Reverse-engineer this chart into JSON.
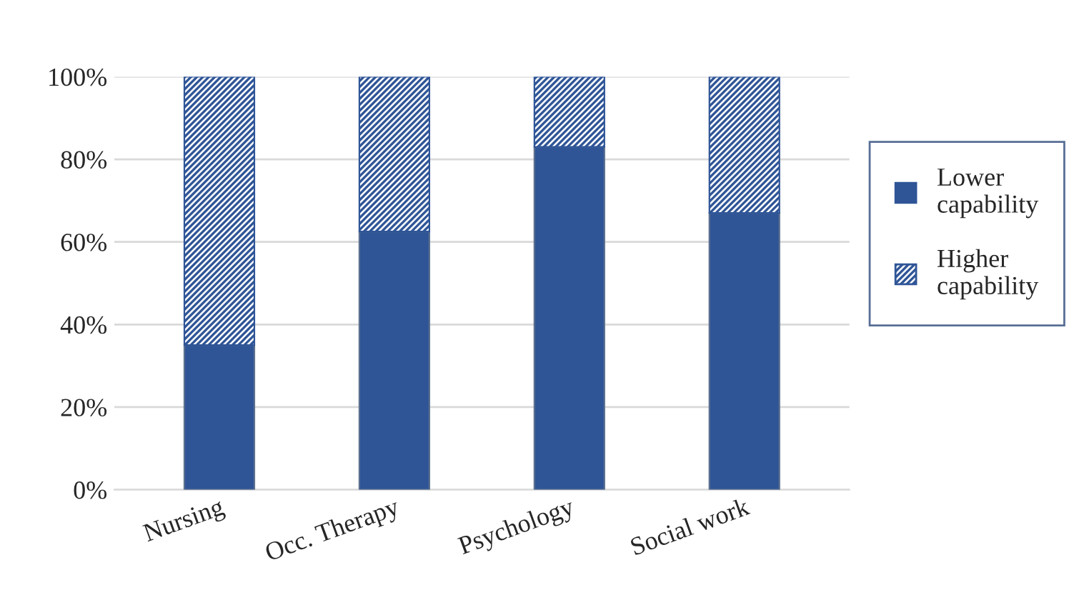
{
  "chart_data": {
    "type": "bar",
    "stacked": true,
    "categories": [
      "Nursing",
      "Occ. Therapy",
      "Psychology",
      "Social work"
    ],
    "series": [
      {
        "name": "Lower capability",
        "color": "#2f5597",
        "values": [
          35,
          62.5,
          83,
          67
        ]
      },
      {
        "name": "Higher capability",
        "color": "#2f5597",
        "values": [
          65,
          37.5,
          17,
          33
        ]
      }
    ],
    "ylim": [
      0,
      100
    ],
    "yticks": [
      {
        "value": 0,
        "label": "0%"
      },
      {
        "value": 20,
        "label": "20%"
      },
      {
        "value": 40,
        "label": "40%"
      },
      {
        "value": 60,
        "label": "60%"
      },
      {
        "value": 80,
        "label": "80%"
      },
      {
        "value": 100,
        "label": "100%"
      }
    ],
    "grid": "y",
    "legend": "right"
  }
}
